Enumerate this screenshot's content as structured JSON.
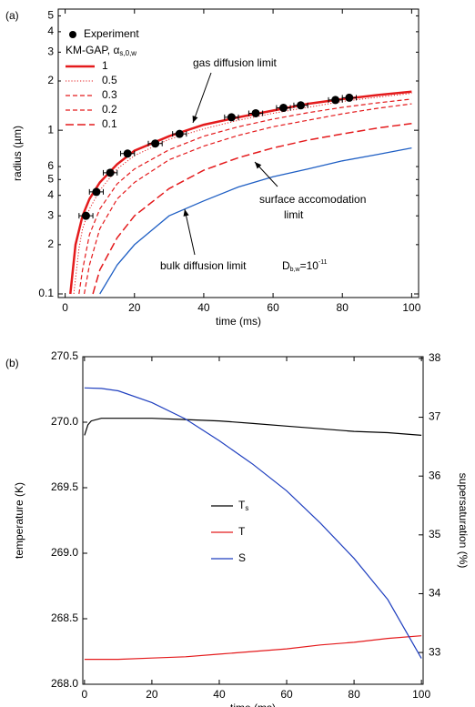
{
  "chart_data": [
    {
      "type": "line",
      "panel_label": "(a)",
      "x_label": "time (ms)",
      "y_label": "radius (µm)",
      "xlim": [
        -2,
        102
      ],
      "ylim": [
        0.095,
        5.5
      ],
      "ylog": true,
      "xticks": [
        0,
        20,
        40,
        60,
        80,
        100
      ],
      "yticks": [
        0.1,
        {
          "value": 0.2,
          "label": "2"
        },
        {
          "value": 0.3,
          "label": "3"
        },
        {
          "value": 0.4,
          "label": "4"
        },
        {
          "value": 0.5,
          "label": "5"
        },
        {
          "value": 0.6,
          "label": "6"
        },
        1,
        {
          "value": 2,
          "label": "2"
        },
        {
          "value": 3,
          "label": "3"
        },
        {
          "value": 4,
          "label": "4"
        },
        {
          "value": 5,
          "label": "5"
        }
      ],
      "points": {
        "name": "Experiment",
        "color": "#000000",
        "x": [
          6,
          9,
          13,
          18,
          26,
          33,
          48,
          55,
          63,
          68,
          78,
          82
        ],
        "values": [
          0.3,
          0.42,
          0.55,
          0.72,
          0.83,
          0.95,
          1.2,
          1.27,
          1.37,
          1.42,
          1.53,
          1.58
        ],
        "x_errors": [
          2,
          2,
          2,
          2,
          2,
          2,
          2,
          2,
          2,
          2,
          2,
          2
        ]
      },
      "legend_title": "KM-GAP, α",
      "legend_title_sub": "s,0,w",
      "series": [
        {
          "name": "1",
          "color": "#e41a1c",
          "style": "solid",
          "width": 2.5,
          "x": [
            1.5,
            3,
            5,
            7,
            10,
            15,
            20,
            30,
            40,
            50,
            60,
            70,
            80,
            90,
            100
          ],
          "values": [
            0.1,
            0.2,
            0.3,
            0.38,
            0.48,
            0.62,
            0.75,
            0.92,
            1.08,
            1.2,
            1.32,
            1.45,
            1.55,
            1.64,
            1.72
          ]
        },
        {
          "name": "0.5",
          "color": "#e41a1c",
          "style": "dotted",
          "width": 1,
          "x": [
            2.5,
            4,
            5,
            7,
            10,
            15,
            20,
            30,
            40,
            50,
            60,
            70,
            80,
            90,
            100
          ],
          "values": [
            0.1,
            0.19,
            0.25,
            0.33,
            0.43,
            0.58,
            0.7,
            0.88,
            1.02,
            1.15,
            1.27,
            1.38,
            1.5,
            1.59,
            1.68
          ]
        },
        {
          "name": "0.3",
          "color": "#e41a1c",
          "style": "dashed",
          "width": 1.2,
          "x": [
            4,
            5,
            7,
            10,
            15,
            20,
            30,
            40,
            50,
            60,
            70,
            80,
            90,
            100
          ],
          "values": [
            0.1,
            0.14,
            0.23,
            0.33,
            0.47,
            0.58,
            0.76,
            0.92,
            1.05,
            1.17,
            1.28,
            1.38,
            1.47,
            1.55
          ]
        },
        {
          "name": "0.2",
          "color": "#e41a1c",
          "style": "dashed",
          "width": 1.2,
          "x": [
            5.5,
            7,
            10,
            15,
            20,
            30,
            40,
            50,
            60,
            70,
            80,
            90,
            100
          ],
          "values": [
            0.1,
            0.15,
            0.25,
            0.38,
            0.48,
            0.66,
            0.8,
            0.93,
            1.05,
            1.15,
            1.26,
            1.36,
            1.45
          ]
        },
        {
          "name": "0.1",
          "color": "#e41a1c",
          "style": "longdash",
          "width": 1.5,
          "x": [
            8,
            10,
            15,
            20,
            30,
            40,
            50,
            60,
            70,
            80,
            90,
            100
          ],
          "values": [
            0.1,
            0.14,
            0.22,
            0.3,
            0.44,
            0.57,
            0.68,
            0.78,
            0.87,
            0.95,
            1.03,
            1.1
          ]
        },
        {
          "color": "#1f5fc4",
          "style": "solid",
          "width": 1.3,
          "x": [
            10,
            15,
            20,
            30,
            40,
            50,
            60,
            70,
            80,
            90,
            100
          ],
          "values": [
            0.1,
            0.15,
            0.2,
            0.3,
            0.37,
            0.45,
            0.52,
            0.58,
            0.65,
            0.71,
            0.78
          ]
        }
      ],
      "annotations": [
        {
          "text": "gas diffusion limit"
        },
        {
          "text": "surface accomodation",
          "text2": "limit"
        },
        {
          "text": "bulk diffusion limit"
        },
        {
          "text": "D",
          "sub": "b,w",
          "after": "=10",
          "sup": "-11"
        }
      ]
    },
    {
      "type": "line",
      "panel_label": "(b)",
      "x_label": "time (ms)",
      "y_label": "temperature (K)",
      "y2_label": "supersaturation (%)",
      "xlim": [
        -0.5,
        100.5
      ],
      "ylim": [
        268.0,
        270.5
      ],
      "y2lim": [
        32.46,
        38.03
      ],
      "xticks": [
        0,
        20,
        40,
        60,
        80,
        100
      ],
      "yticks": [
        {
          "value": 268.0,
          "label": "268.0"
        },
        268.5,
        {
          "value": 269.0,
          "label": "269.0"
        },
        269.5,
        {
          "value": 270.0,
          "label": "270.0"
        },
        270.5
      ],
      "y2ticks": [
        33,
        34,
        35,
        36,
        37,
        38
      ],
      "series": [
        {
          "name": "T",
          "name_sub": "s",
          "color": "#000000",
          "style": "solid",
          "width": 1.2,
          "x": [
            0,
            1,
            2,
            5,
            10,
            20,
            30,
            40,
            50,
            60,
            70,
            80,
            90,
            100
          ],
          "values": [
            269.9,
            269.98,
            270.01,
            270.03,
            270.03,
            270.03,
            270.02,
            270.01,
            269.99,
            269.97,
            269.95,
            269.93,
            269.92,
            269.9
          ]
        },
        {
          "name": "T",
          "color": "#e41a1c",
          "style": "solid",
          "width": 1.2,
          "x": [
            0,
            10,
            20,
            30,
            40,
            50,
            60,
            70,
            80,
            90,
            100
          ],
          "values": [
            268.19,
            268.19,
            268.2,
            268.21,
            268.23,
            268.25,
            268.27,
            268.3,
            268.32,
            268.35,
            268.37
          ]
        },
        {
          "name": "S",
          "axis": "y2",
          "color": "#1f3fbf",
          "style": "solid",
          "width": 1.2,
          "x": [
            0,
            5,
            10,
            20,
            30,
            40,
            50,
            60,
            70,
            80,
            90,
            100
          ],
          "values": [
            37.5,
            37.49,
            37.45,
            37.25,
            36.97,
            36.6,
            36.2,
            35.75,
            35.2,
            34.6,
            33.9,
            32.9
          ]
        }
      ]
    }
  ]
}
